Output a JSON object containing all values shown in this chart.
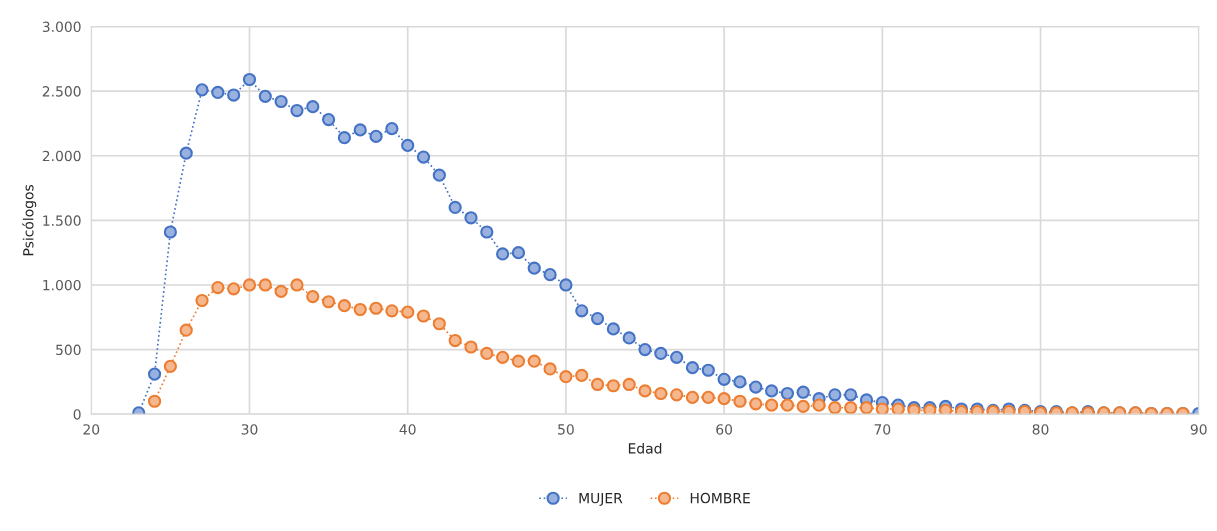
{
  "chart_data": {
    "type": "line",
    "xlabel": "Edad",
    "ylabel": "Psicólogos",
    "xlim": [
      20,
      90
    ],
    "xticks": [
      20,
      30,
      40,
      50,
      60,
      70,
      80,
      90
    ],
    "ylim": [
      0,
      3000
    ],
    "yticks": [
      0,
      500,
      {
        "value": 1000,
        "label": "1.000"
      },
      {
        "value": 1500,
        "label": "1.500"
      },
      {
        "value": 2000,
        "label": "2.000"
      },
      {
        "value": 2500,
        "label": "2.500"
      },
      {
        "value": 3000,
        "label": "3.000"
      }
    ],
    "grid": true,
    "legend": "bottom",
    "marker": "circle",
    "line_style": "dotted",
    "series": [
      {
        "name": "MUJER",
        "color": "#4472c4",
        "x": [
          23,
          24,
          25,
          26,
          27,
          28,
          29,
          30,
          31,
          32,
          33,
          34,
          35,
          36,
          37,
          38,
          39,
          40,
          41,
          42,
          43,
          44,
          45,
          46,
          47,
          48,
          49,
          50,
          51,
          52,
          53,
          54,
          55,
          56,
          57,
          58,
          59,
          60,
          61,
          62,
          63,
          64,
          65,
          66,
          67,
          68,
          69,
          70,
          71,
          72,
          73,
          74,
          75,
          76,
          77,
          78,
          79,
          80,
          81,
          82,
          83,
          84,
          85,
          86,
          87,
          88,
          89,
          90
        ],
        "values": [
          10,
          310,
          1410,
          2020,
          2510,
          2490,
          2470,
          2590,
          2460,
          2420,
          2350,
          2380,
          2280,
          2140,
          2200,
          2150,
          2210,
          2080,
          1990,
          1850,
          1600,
          1520,
          1410,
          1240,
          1250,
          1130,
          1080,
          1000,
          800,
          740,
          660,
          590,
          500,
          470,
          440,
          360,
          340,
          270,
          250,
          210,
          180,
          160,
          170,
          120,
          150,
          150,
          110,
          90,
          70,
          50,
          50,
          60,
          40,
          40,
          30,
          40,
          30,
          20,
          20,
          10,
          20,
          10,
          10,
          10,
          5,
          5,
          5,
          5
        ]
      },
      {
        "name": "HOMBRE",
        "color": "#ed7d31",
        "x": [
          24,
          25,
          26,
          27,
          28,
          29,
          30,
          31,
          32,
          33,
          34,
          35,
          36,
          37,
          38,
          39,
          40,
          41,
          42,
          43,
          44,
          45,
          46,
          47,
          48,
          49,
          50,
          51,
          52,
          53,
          54,
          55,
          56,
          57,
          58,
          59,
          60,
          61,
          62,
          63,
          64,
          65,
          66,
          67,
          68,
          69,
          70,
          71,
          72,
          73,
          74,
          75,
          76,
          77,
          78,
          79,
          80,
          81,
          82,
          83,
          84,
          85,
          86,
          87,
          88,
          89
        ],
        "values": [
          100,
          370,
          650,
          880,
          980,
          970,
          1000,
          1000,
          950,
          1000,
          910,
          870,
          840,
          810,
          820,
          800,
          790,
          760,
          700,
          570,
          520,
          470,
          440,
          410,
          410,
          350,
          290,
          300,
          230,
          220,
          230,
          180,
          160,
          150,
          130,
          130,
          120,
          100,
          80,
          70,
          70,
          60,
          70,
          50,
          50,
          50,
          40,
          40,
          30,
          30,
          30,
          20,
          20,
          20,
          20,
          20,
          10,
          10,
          10,
          10,
          10,
          10,
          10,
          5,
          5,
          5
        ]
      }
    ]
  }
}
